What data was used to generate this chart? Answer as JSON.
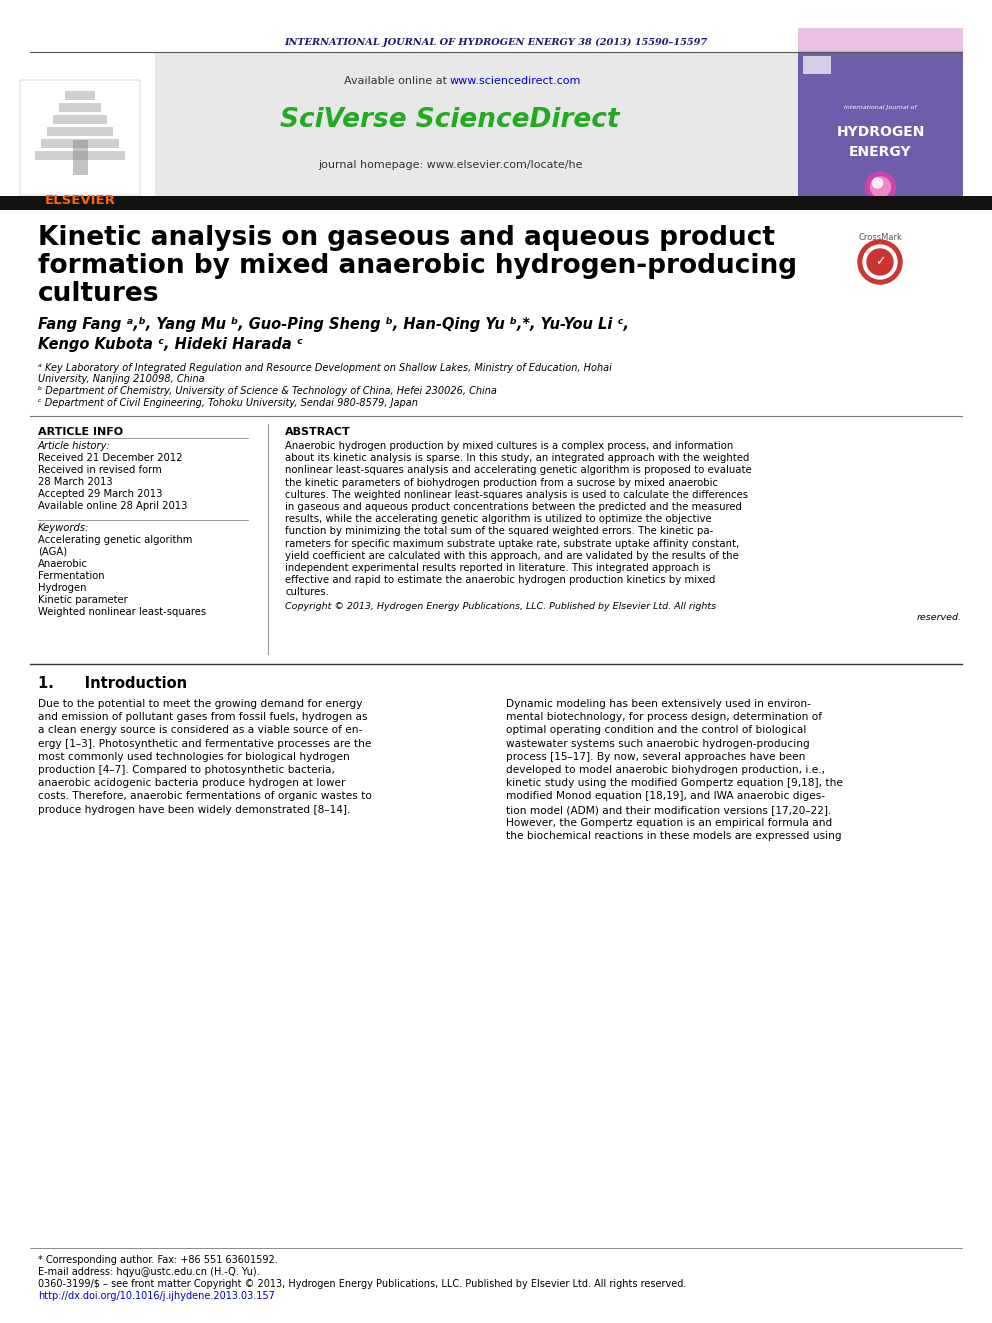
{
  "journal_header": "INTERNATIONAL JOURNAL OF HYDROGEN ENERGY 38 (2013) 15590–15597",
  "journal_header_color": "#1a1a6e",
  "sciverse_color": "#22aa22",
  "elsevier_color": "#FF6600",
  "title_line1": "Kinetic analysis on gaseous and aqueous product",
  "title_line2": "formation by mixed anaerobic hydrogen-producing",
  "title_line3": "cultures",
  "authors_line1": "Fang Fang ᵃ,ᵇ, Yang Mu ᵇ, Guo-Ping Sheng ᵇ, Han-Qing Yu ᵇ,*, Yu-You Li ᶜ,",
  "authors_line2": "Kengo Kubota ᶜ, Hideki Harada ᶜ",
  "affil_a": "ᵃ Key Laboratory of Integrated Regulation and Resource Development on Shallow Lakes, Ministry of Education, Hohai",
  "affil_a2": "University, Nanjing 210098, China",
  "affil_b": "ᵇ Department of Chemistry, University of Science & Technology of China, Hefei 230026, China",
  "affil_c": "ᶜ Department of Civil Engineering, Tohoku University, Sendai 980-8579, Japan",
  "article_info_title": "ARTICLE INFO",
  "abstract_title": "ABSTRACT",
  "article_history_label": "Article history:",
  "received_label": "Received 21 December 2012",
  "revised_label": "Received in revised form",
  "revised_date": "28 March 2013",
  "accepted_label": "Accepted 29 March 2013",
  "available_label": "Available online 28 April 2013",
  "keywords_label": "Keywords:",
  "keyword1": "Accelerating genetic algorithm",
  "keyword2": "(AGA)",
  "keyword3": "Anaerobic",
  "keyword4": "Fermentation",
  "keyword5": "Hydrogen",
  "keyword6": "Kinetic parameter",
  "keyword7": "Weighted nonlinear least-squares",
  "abstract_lines": [
    "Anaerobic hydrogen production by mixed cultures is a complex process, and information",
    "about its kinetic analysis is sparse. In this study, an integrated approach with the weighted",
    "nonlinear least-squares analysis and accelerating genetic algorithm is proposed to evaluate",
    "the kinetic parameters of biohydrogen production from a sucrose by mixed anaerobic",
    "cultures. The weighted nonlinear least-squares analysis is used to calculate the differences",
    "in gaseous and aqueous product concentrations between the predicted and the measured",
    "results, while the accelerating genetic algorithm is utilized to optimize the objective",
    "function by minimizing the total sum of the squared weighted errors. The kinetic pa-",
    "rameters for specific maximum substrate uptake rate, substrate uptake affinity constant,",
    "yield coefficient are calculated with this approach, and are validated by the results of the",
    "independent experimental results reported in literature. This integrated approach is",
    "effective and rapid to estimate the anaerobic hydrogen production kinetics by mixed",
    "cultures."
  ],
  "copyright_line1": "Copyright © 2013, Hydrogen Energy Publications, LLC. Published by Elsevier Ltd. All rights",
  "copyright_line2": "reserved.",
  "intro_heading": "1.      Introduction",
  "intro_col1": [
    "Due to the potential to meet the growing demand for energy",
    "and emission of pollutant gases from fossil fuels, hydrogen as",
    "a clean energy source is considered as a viable source of en-",
    "ergy [1–3]. Photosynthetic and fermentative processes are the",
    "most commonly used technologies for biological hydrogen",
    "production [4–7]. Compared to photosynthetic bacteria,",
    "anaerobic acidogenic bacteria produce hydrogen at lower",
    "costs. Therefore, anaerobic fermentations of organic wastes to",
    "produce hydrogen have been widely demonstrated [8–14]."
  ],
  "intro_col2": [
    "Dynamic modeling has been extensively used in environ-",
    "mental biotechnology, for process design, determination of",
    "optimal operating condition and the control of biological",
    "wastewater systems such anaerobic hydrogen-producing",
    "process [15–17]. By now, several approaches have been",
    "developed to model anaerobic biohydrogen production, i.e.,",
    "kinetic study using the modified Gompertz equation [9,18], the",
    "modified Monod equation [18,19], and IWA anaerobic diges-",
    "tion model (ADM) and their modification versions [17,20–22].",
    "However, the Gompertz equation is an empirical formula and",
    "the biochemical reactions in these models are expressed using"
  ],
  "footer_corresponding": "* Corresponding author. Fax: +86 551 63601592.",
  "footer_email": "E-mail address: hqyu@ustc.edu.cn (H.-Q. Yu).",
  "footer_issn": "0360-3199/$ – see front matter Copyright © 2013, Hydrogen Energy Publications, LLC. Published by Elsevier Ltd. All rights reserved.",
  "footer_doi": "http://dx.doi.org/10.1016/j.ijhydene.2013.03.157",
  "bg_color": "#ffffff",
  "black_bar_color": "#111111",
  "link_color": "#0000cc",
  "gray_bg": "#e8e8e8"
}
